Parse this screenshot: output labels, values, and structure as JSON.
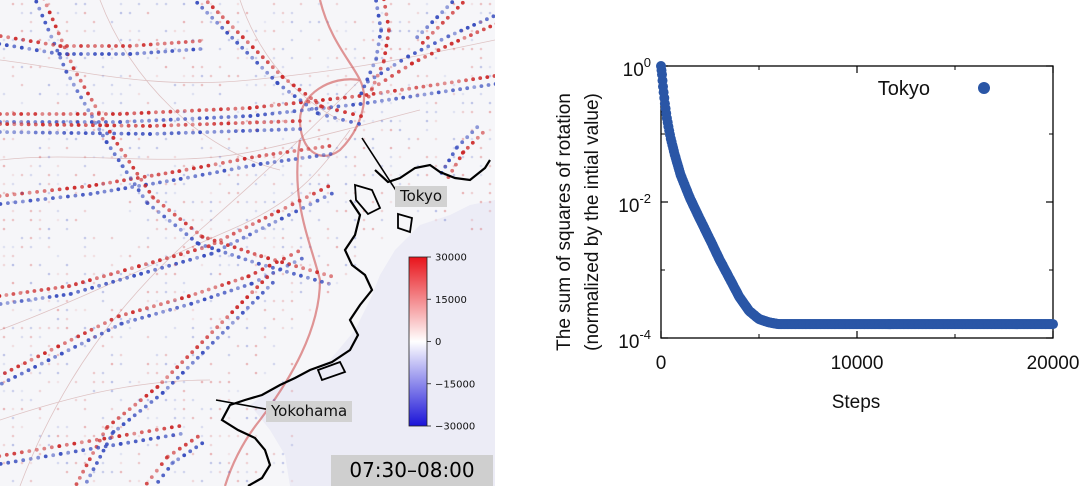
{
  "map": {
    "callouts": [
      {
        "label": "Tokyo"
      },
      {
        "label": "Yokohama"
      }
    ],
    "time_label": "07:30–08:00",
    "colorbar": {
      "ticks": [
        30000,
        15000,
        0,
        -15000,
        -30000
      ],
      "tick_labels": [
        "30000",
        "15000",
        "0",
        "−15000",
        "−30000"
      ],
      "colors": {
        "positive": "#e8141b",
        "zero": "#ffffff",
        "negative": "#1a13d8"
      }
    },
    "colors": {
      "road_red": "#cc2a2a",
      "road_blue": "#3a4fbf",
      "coast": "#000000"
    }
  },
  "chart_data": {
    "type": "scatter",
    "title": "",
    "xlabel": "Steps",
    "ylabel_line1": "The sum of squares of rotation",
    "ylabel_line2": "(normalized by the intial value)",
    "yscale": "log",
    "xlim": [
      0,
      20000
    ],
    "ylim": [
      0.0001,
      1
    ],
    "x_ticks": [
      0,
      10000,
      20000
    ],
    "x_tick_labels": [
      "0",
      "10000",
      "20000"
    ],
    "y_ticks": [
      {
        "base": "10",
        "exp": "0",
        "value": 1
      },
      {
        "base": "10",
        "exp": "-2",
        "value": 0.01
      },
      {
        "base": "10",
        "exp": "-4",
        "value": 0.0001
      }
    ],
    "legend": {
      "position": "top-right"
    },
    "series": [
      {
        "name": "Tokyo",
        "color": "#2a56a6",
        "x": [
          0,
          50,
          100,
          200,
          300,
          500,
          700,
          1000,
          1500,
          2000,
          2500,
          3000,
          3500,
          4000,
          4500,
          5000,
          5500,
          6000,
          7000,
          8000,
          10000,
          12000,
          14000,
          16000,
          18000,
          20000
        ],
        "y": [
          1,
          0.75,
          0.5,
          0.28,
          0.17,
          0.085,
          0.05,
          0.025,
          0.011,
          0.0055,
          0.0028,
          0.0014,
          0.00075,
          0.0004,
          0.00025,
          0.00019,
          0.00017,
          0.00016,
          0.00016,
          0.00016,
          0.00016,
          0.00016,
          0.00016,
          0.00016,
          0.00016,
          0.00016
        ]
      }
    ]
  }
}
